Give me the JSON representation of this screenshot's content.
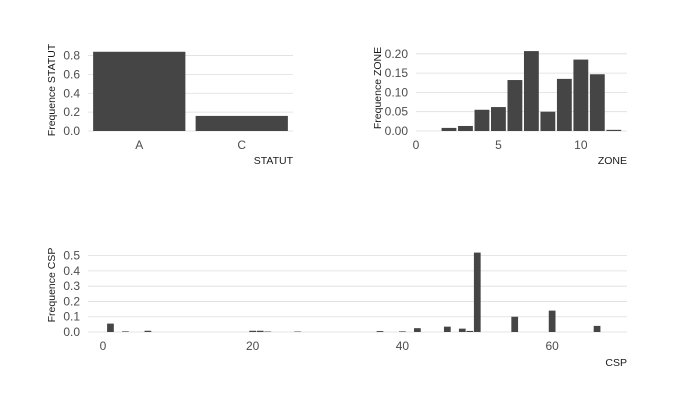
{
  "chart_data": [
    {
      "type": "bar",
      "xlabel": "STATUT",
      "ylabel": "Frequence STATUT",
      "categories": [
        "A",
        "C"
      ],
      "values": [
        0.84,
        0.16
      ],
      "ylim": [
        0,
        0.88
      ],
      "yticks": [
        0.0,
        0.2,
        0.4,
        0.6,
        0.8
      ],
      "ytick_labels": [
        "0.0",
        "0.2",
        "0.4",
        "0.6",
        "0.8"
      ],
      "grid": true,
      "bar_color": "#454545"
    },
    {
      "type": "bar",
      "xlabel": "ZONE",
      "ylabel": "Frequence ZONE",
      "x": [
        2,
        3,
        4,
        5,
        6,
        7,
        8,
        9,
        10,
        11,
        12
      ],
      "values": [
        0.008,
        0.013,
        0.055,
        0.062,
        0.132,
        0.207,
        0.05,
        0.135,
        0.185,
        0.147,
        0.003
      ],
      "xlim": [
        0,
        12.8
      ],
      "ylim": [
        0,
        0.215
      ],
      "xticks": [
        0,
        5,
        10
      ],
      "xtick_labels": [
        "0",
        "5",
        "10"
      ],
      "yticks": [
        0.0,
        0.05,
        0.1,
        0.15,
        0.2
      ],
      "ytick_labels": [
        "0.00",
        "0.05",
        "0.10",
        "0.15",
        "0.20"
      ],
      "grid": true,
      "bar_color": "#454545"
    },
    {
      "type": "bar",
      "xlabel": "CSP",
      "ylabel": "Frequence CSP",
      "x": [
        1,
        3,
        6,
        20,
        21,
        22,
        26,
        37,
        40,
        42,
        46,
        48,
        49,
        50,
        55,
        60,
        66
      ],
      "values": [
        0.055,
        0.004,
        0.008,
        0.008,
        0.008,
        0.003,
        0.003,
        0.006,
        0.004,
        0.025,
        0.035,
        0.022,
        0.007,
        0.52,
        0.1,
        0.14,
        0.04
      ],
      "xlim": [
        -2,
        70
      ],
      "ylim": [
        0,
        0.55
      ],
      "xticks": [
        0,
        20,
        40,
        60
      ],
      "xtick_labels": [
        "0",
        "20",
        "40",
        "60"
      ],
      "yticks": [
        0.0,
        0.1,
        0.2,
        0.3,
        0.4,
        0.5
      ],
      "ytick_labels": [
        "0.0",
        "0.1",
        "0.2",
        "0.3",
        "0.4",
        "0.5"
      ],
      "grid": true,
      "bar_color": "#454545"
    }
  ]
}
